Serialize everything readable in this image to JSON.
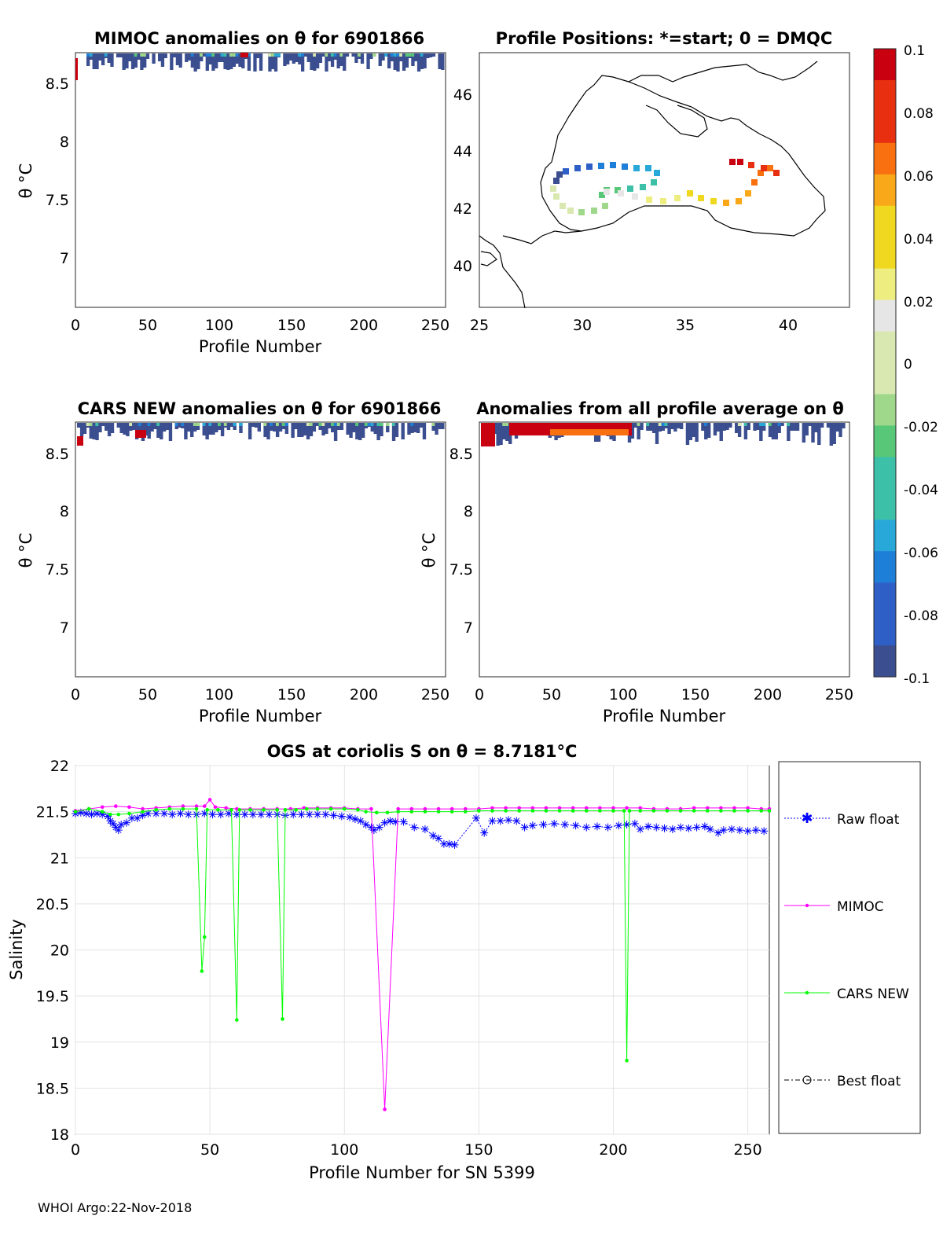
{
  "colors": {
    "raw_float": "#0000ff",
    "mimoc": "#ff00ff",
    "cars_new": "#00ff00",
    "best_float": "#000000",
    "colormap": [
      "#3b4e8f",
      "#2e5fc7",
      "#1e7fd8",
      "#28a8d8",
      "#3cc0a8",
      "#58c878",
      "#9fd88a",
      "#d8e8b0",
      "#e6e6e6",
      "#eeee80",
      "#f0d820",
      "#f8a818",
      "#f87010",
      "#e83010",
      "#c80010"
    ]
  },
  "footer": "WHOI Argo:22-Nov-2018",
  "panels": {
    "mimoc": {
      "title": "MIMOC anomalies on θ  for 6901866",
      "xlabel": "Profile Number",
      "ylabel": "θ °C",
      "xticks": [
        "0",
        "50",
        "100",
        "150",
        "200",
        "250"
      ],
      "yticks": [
        "8.5",
        "8",
        "7.5",
        "7"
      ]
    },
    "map": {
      "title": "Profile Positions: *=start; 0 = DMQC",
      "xticks": [
        "25",
        "30",
        "35",
        "40"
      ],
      "yticks": [
        "46",
        "44",
        "42",
        "40"
      ]
    },
    "cars": {
      "title": "CARS NEW anomalies on θ for 6901866",
      "xlabel": "Profile Number",
      "ylabel": "θ °C",
      "xticks": [
        "0",
        "50",
        "100",
        "150",
        "200",
        "250"
      ],
      "yticks": [
        "8.5",
        "8",
        "7.5",
        "7"
      ]
    },
    "allavg": {
      "title": "Anomalies from all profile average on θ",
      "xlabel": "Profile Number",
      "ylabel": "θ °C",
      "xticks": [
        "0",
        "50",
        "100",
        "150",
        "200",
        "250"
      ],
      "yticks": [
        "8.5",
        "8",
        "7.5",
        "7"
      ]
    },
    "colorbar": {
      "ticks": [
        "0.1",
        "0.08",
        "0.06",
        "0.04",
        "0.02",
        "0",
        "-0.02",
        "-0.04",
        "-0.06",
        "-0.08",
        "-0.1"
      ]
    }
  },
  "chart_data": [
    {
      "type": "line",
      "title": "OGS at coriolis S on θ = 8.7181°C",
      "xlabel": "Profile Number for SN 5399",
      "ylabel": "Salinity",
      "xlim": [
        0,
        258
      ],
      "ylim": [
        18,
        22
      ],
      "xticks": [
        "0",
        "50",
        "100",
        "150",
        "200",
        "250"
      ],
      "yticks": [
        "22",
        "21.5",
        "21",
        "20.5",
        "20",
        "19.5",
        "19",
        "18.5",
        "18"
      ],
      "grid": true,
      "legend_position": "right",
      "legend": [
        "Raw float",
        "MIMOC",
        "CARS NEW",
        "Best float"
      ],
      "series": [
        {
          "name": "Raw float",
          "points": [
            [
              0,
              21.48
            ],
            [
              2,
              21.49
            ],
            [
              4,
              21.48
            ],
            [
              6,
              21.47
            ],
            [
              8,
              21.48
            ],
            [
              10,
              21.47
            ],
            [
              12,
              21.45
            ],
            [
              13,
              21.4
            ],
            [
              14,
              21.37
            ],
            [
              15,
              21.33
            ],
            [
              16,
              21.3
            ],
            [
              17,
              21.36
            ],
            [
              19,
              21.38
            ],
            [
              21,
              21.43
            ],
            [
              23,
              21.43
            ],
            [
              25,
              21.46
            ],
            [
              27,
              21.48
            ],
            [
              30,
              21.48
            ],
            [
              33,
              21.48
            ],
            [
              36,
              21.47
            ],
            [
              39,
              21.48
            ],
            [
              42,
              21.47
            ],
            [
              45,
              21.47
            ],
            [
              48,
              21.48
            ],
            [
              51,
              21.47
            ],
            [
              54,
              21.47
            ],
            [
              57,
              21.48
            ],
            [
              60,
              21.47
            ],
            [
              63,
              21.47
            ],
            [
              66,
              21.47
            ],
            [
              69,
              21.47
            ],
            [
              72,
              21.47
            ],
            [
              75,
              21.47
            ],
            [
              78,
              21.46
            ],
            [
              81,
              21.47
            ],
            [
              84,
              21.47
            ],
            [
              87,
              21.47
            ],
            [
              90,
              21.47
            ],
            [
              93,
              21.47
            ],
            [
              96,
              21.46
            ],
            [
              99,
              21.45
            ],
            [
              102,
              21.44
            ],
            [
              104,
              21.42
            ],
            [
              106,
              21.4
            ],
            [
              108,
              21.36
            ],
            [
              110,
              21.33
            ],
            [
              111,
              21.3
            ],
            [
              113,
              21.33
            ],
            [
              115,
              21.38
            ],
            [
              117,
              21.4
            ],
            [
              119,
              21.39
            ],
            [
              122,
              21.39
            ],
            [
              126,
              21.33
            ],
            [
              130,
              21.31
            ],
            [
              133,
              21.24
            ],
            [
              135,
              21.21
            ],
            [
              137,
              21.15
            ],
            [
              139,
              21.15
            ],
            [
              141,
              21.14
            ],
            [
              149,
              21.43
            ],
            [
              152,
              21.27
            ],
            [
              155,
              21.4
            ],
            [
              158,
              21.4
            ],
            [
              161,
              21.41
            ],
            [
              164,
              21.4
            ],
            [
              167,
              21.33
            ],
            [
              170,
              21.35
            ],
            [
              174,
              21.36
            ],
            [
              178,
              21.37
            ],
            [
              182,
              21.36
            ],
            [
              186,
              21.35
            ],
            [
              190,
              21.33
            ],
            [
              194,
              21.34
            ],
            [
              198,
              21.33
            ],
            [
              202,
              21.35
            ],
            [
              205,
              21.36
            ],
            [
              208,
              21.37
            ],
            [
              210,
              21.31
            ],
            [
              213,
              21.34
            ],
            [
              216,
              21.33
            ],
            [
              219,
              21.32
            ],
            [
              222,
              21.31
            ],
            [
              225,
              21.33
            ],
            [
              228,
              21.32
            ],
            [
              231,
              21.33
            ],
            [
              234,
              21.34
            ],
            [
              236,
              21.31
            ],
            [
              239,
              21.27
            ],
            [
              241,
              21.3
            ],
            [
              244,
              21.31
            ],
            [
              247,
              21.3
            ],
            [
              250,
              21.29
            ],
            [
              253,
              21.3
            ],
            [
              256,
              21.29
            ]
          ]
        },
        {
          "name": "MIMOC",
          "points": [
            [
              0,
              21.51
            ],
            [
              5,
              21.53
            ],
            [
              10,
              21.55
            ],
            [
              15,
              21.56
            ],
            [
              20,
              21.55
            ],
            [
              25,
              21.53
            ],
            [
              30,
              21.54
            ],
            [
              35,
              21.55
            ],
            [
              40,
              21.56
            ],
            [
              45,
              21.56
            ],
            [
              48,
              21.56
            ],
            [
              50,
              21.63
            ],
            [
              52,
              21.55
            ],
            [
              56,
              21.54
            ],
            [
              60,
              21.53
            ],
            [
              65,
              21.53
            ],
            [
              70,
              21.53
            ],
            [
              75,
              21.53
            ],
            [
              80,
              21.53
            ],
            [
              85,
              21.54
            ],
            [
              90,
              21.54
            ],
            [
              95,
              21.54
            ],
            [
              100,
              21.54
            ],
            [
              105,
              21.53
            ],
            [
              110,
              21.53
            ],
            [
              115,
              18.27
            ],
            [
              120,
              21.53
            ],
            [
              125,
              21.53
            ],
            [
              130,
              21.53
            ],
            [
              135,
              21.53
            ],
            [
              140,
              21.53
            ],
            [
              145,
              21.53
            ],
            [
              150,
              21.53
            ],
            [
              155,
              21.54
            ],
            [
              160,
              21.54
            ],
            [
              165,
              21.54
            ],
            [
              170,
              21.54
            ],
            [
              175,
              21.54
            ],
            [
              180,
              21.54
            ],
            [
              185,
              21.54
            ],
            [
              190,
              21.54
            ],
            [
              195,
              21.54
            ],
            [
              200,
              21.54
            ],
            [
              205,
              21.54
            ],
            [
              210,
              21.54
            ],
            [
              215,
              21.53
            ],
            [
              220,
              21.53
            ],
            [
              225,
              21.53
            ],
            [
              230,
              21.54
            ],
            [
              235,
              21.54
            ],
            [
              240,
              21.54
            ],
            [
              245,
              21.54
            ],
            [
              250,
              21.54
            ],
            [
              255,
              21.53
            ],
            [
              258,
              21.53
            ]
          ]
        },
        {
          "name": "CARS NEW",
          "points": [
            [
              0,
              21.5
            ],
            [
              5,
              21.53
            ],
            [
              10,
              21.5
            ],
            [
              13,
              21.47
            ],
            [
              16,
              21.47
            ],
            [
              20,
              21.48
            ],
            [
              25,
              21.5
            ],
            [
              30,
              21.52
            ],
            [
              35,
              21.53
            ],
            [
              40,
              21.53
            ],
            [
              45,
              21.53
            ],
            [
              47,
              19.77
            ],
            [
              48,
              20.14
            ],
            [
              49,
              21.52
            ],
            [
              53,
              21.52
            ],
            [
              58,
              21.52
            ],
            [
              60,
              19.24
            ],
            [
              61,
              21.52
            ],
            [
              65,
              21.52
            ],
            [
              70,
              21.52
            ],
            [
              75,
              21.52
            ],
            [
              77,
              19.25
            ],
            [
              78,
              21.52
            ],
            [
              82,
              21.52
            ],
            [
              86,
              21.53
            ],
            [
              90,
              21.53
            ],
            [
              95,
              21.53
            ],
            [
              100,
              21.53
            ],
            [
              105,
              21.52
            ],
            [
              108,
              21.5
            ],
            [
              112,
              21.49
            ],
            [
              116,
              21.49
            ],
            [
              120,
              21.5
            ],
            [
              125,
              21.5
            ],
            [
              130,
              21.5
            ],
            [
              135,
              21.5
            ],
            [
              140,
              21.5
            ],
            [
              145,
              21.5
            ],
            [
              150,
              21.51
            ],
            [
              155,
              21.51
            ],
            [
              160,
              21.51
            ],
            [
              165,
              21.51
            ],
            [
              170,
              21.51
            ],
            [
              175,
              21.51
            ],
            [
              180,
              21.51
            ],
            [
              185,
              21.51
            ],
            [
              190,
              21.51
            ],
            [
              195,
              21.51
            ],
            [
              200,
              21.51
            ],
            [
              204,
              21.51
            ],
            [
              205,
              18.8
            ],
            [
              206,
              21.51
            ],
            [
              210,
              21.51
            ],
            [
              215,
              21.51
            ],
            [
              220,
              21.51
            ],
            [
              225,
              21.51
            ],
            [
              230,
              21.51
            ],
            [
              235,
              21.51
            ],
            [
              240,
              21.51
            ],
            [
              245,
              21.51
            ],
            [
              250,
              21.51
            ],
            [
              255,
              21.51
            ],
            [
              258,
              21.51
            ]
          ]
        }
      ]
    }
  ]
}
